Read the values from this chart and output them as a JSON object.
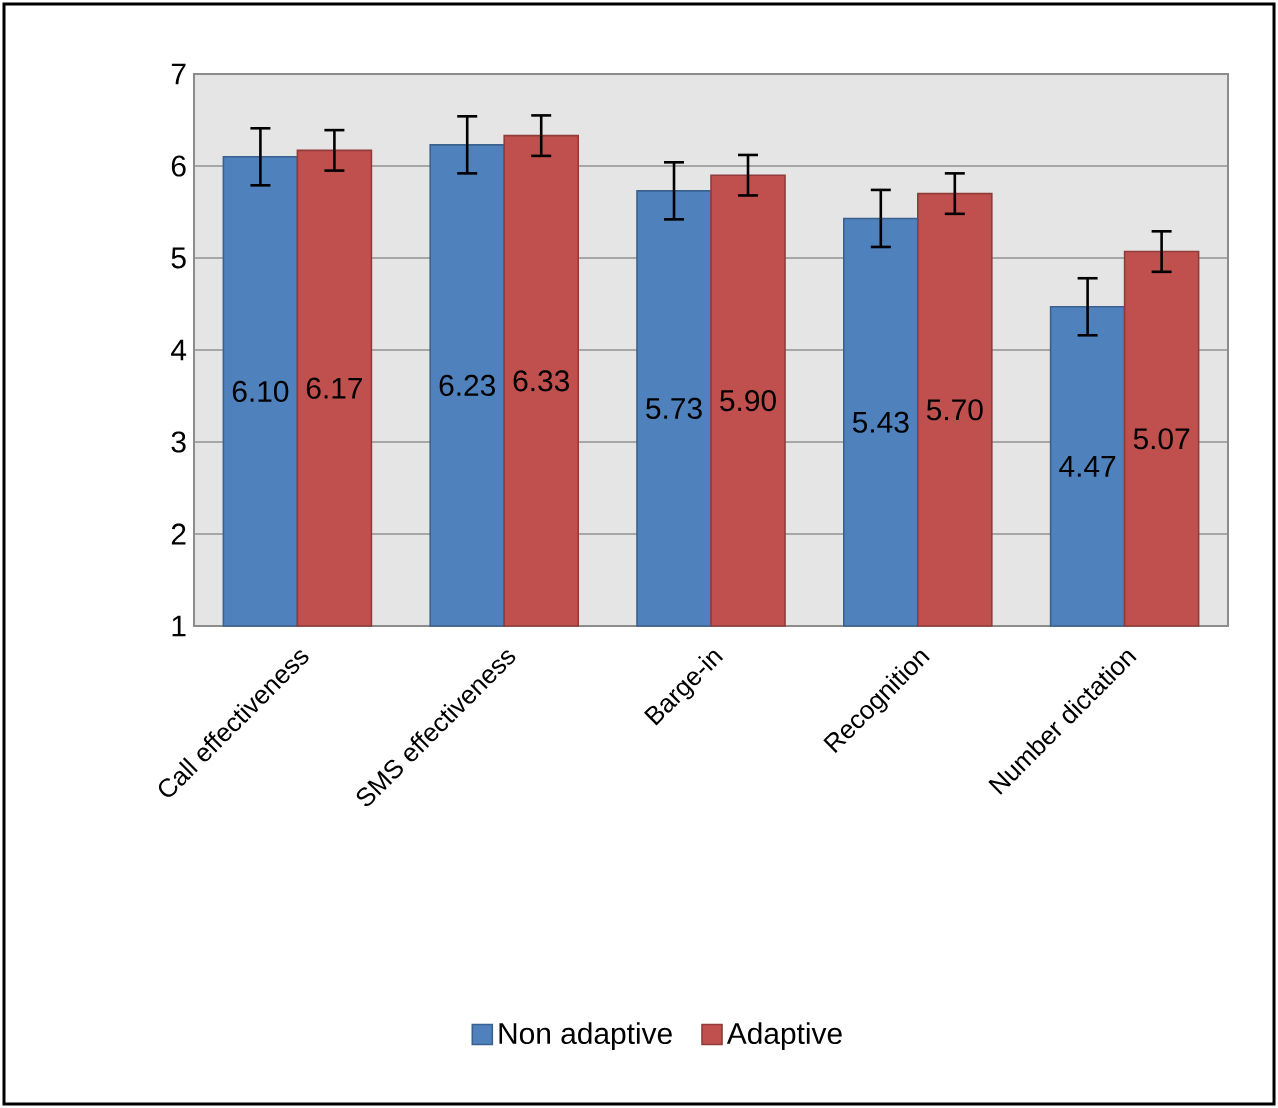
{
  "chart_data": {
    "type": "bar",
    "categories": [
      "Call effectiveness",
      "SMS effectiveness",
      "Barge-in",
      "Recognition",
      "Number dictation"
    ],
    "series": [
      {
        "name": "Non adaptive",
        "color": "#4f81bd",
        "values": [
          6.1,
          6.23,
          5.73,
          5.43,
          4.47
        ],
        "errors": [
          0.31,
          0.31,
          0.31,
          0.31,
          0.31
        ],
        "value_labels": [
          "6.10",
          "6.23",
          "5.73",
          "5.43",
          "4.47"
        ]
      },
      {
        "name": "Adaptive",
        "color": "#c0504d",
        "values": [
          6.17,
          6.33,
          5.9,
          5.7,
          5.07
        ],
        "errors": [
          0.22,
          0.22,
          0.22,
          0.22,
          0.22
        ],
        "value_labels": [
          "6.17",
          "6.33",
          "5.90",
          "5.70",
          "5.07"
        ]
      }
    ],
    "ylim": [
      1,
      7
    ],
    "yticks": [
      1,
      2,
      3,
      4,
      5,
      6,
      7
    ],
    "grid": "y",
    "legend": "bottom"
  }
}
